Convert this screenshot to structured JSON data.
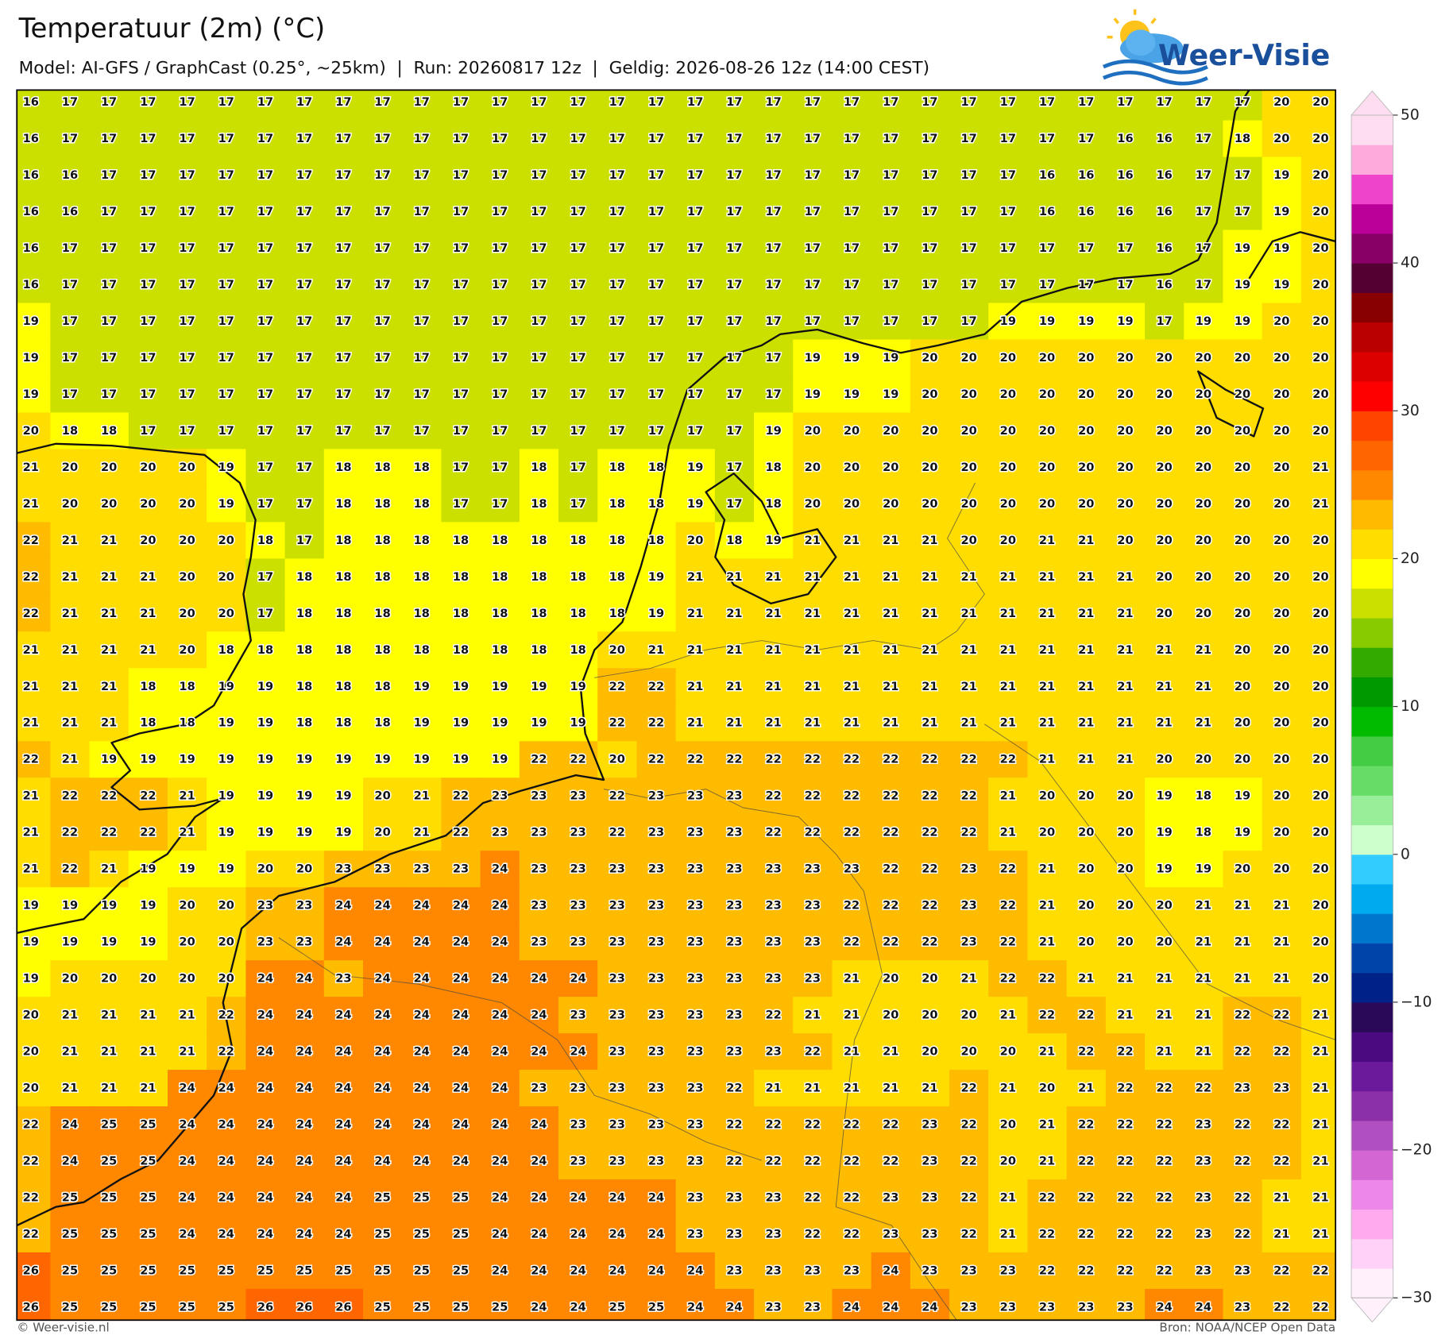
{
  "header": {
    "title": "Temperatuur (2m) (°C)",
    "subtitle": "Model: AI-GFS / GraphCast (0.25°, ~25km)  |  Run: 20260817 12z  |  Geldig: 2026-08-26 12z (14:00 CEST)",
    "logo": "Weer-Visie"
  },
  "map": {
    "grid": [
      [
        16,
        17,
        17,
        17,
        17,
        17,
        17,
        17,
        17,
        17,
        17,
        17,
        17,
        17,
        17,
        17,
        17,
        17,
        17,
        17,
        17,
        17,
        17,
        17,
        17,
        17,
        17,
        17,
        17,
        17,
        17,
        17,
        20,
        20
      ],
      [
        16,
        17,
        17,
        17,
        17,
        17,
        17,
        17,
        17,
        17,
        17,
        17,
        17,
        17,
        17,
        17,
        17,
        17,
        17,
        17,
        17,
        17,
        17,
        17,
        17,
        17,
        17,
        17,
        16,
        16,
        17,
        18,
        20,
        20
      ],
      [
        16,
        16,
        17,
        17,
        17,
        17,
        17,
        17,
        17,
        17,
        17,
        17,
        17,
        17,
        17,
        17,
        17,
        17,
        17,
        17,
        17,
        17,
        17,
        17,
        17,
        17,
        16,
        16,
        16,
        16,
        17,
        17,
        19,
        20
      ],
      [
        16,
        16,
        17,
        17,
        17,
        17,
        17,
        17,
        17,
        17,
        17,
        17,
        17,
        17,
        17,
        17,
        17,
        17,
        17,
        17,
        17,
        17,
        17,
        17,
        17,
        17,
        16,
        16,
        16,
        16,
        17,
        17,
        19,
        20
      ],
      [
        16,
        17,
        17,
        17,
        17,
        17,
        17,
        17,
        17,
        17,
        17,
        17,
        17,
        17,
        17,
        17,
        17,
        17,
        17,
        17,
        17,
        17,
        17,
        17,
        17,
        17,
        17,
        17,
        17,
        16,
        17,
        19,
        19,
        20
      ],
      [
        16,
        17,
        17,
        17,
        17,
        17,
        17,
        17,
        17,
        17,
        17,
        17,
        17,
        17,
        17,
        17,
        17,
        17,
        17,
        17,
        17,
        17,
        17,
        17,
        17,
        17,
        17,
        17,
        17,
        16,
        17,
        19,
        19,
        20
      ],
      [
        19,
        17,
        17,
        17,
        17,
        17,
        17,
        17,
        17,
        17,
        17,
        17,
        17,
        17,
        17,
        17,
        17,
        17,
        17,
        17,
        17,
        17,
        17,
        17,
        17,
        19,
        19,
        19,
        19,
        17,
        19,
        19,
        20,
        20
      ],
      [
        19,
        17,
        17,
        17,
        17,
        17,
        17,
        17,
        17,
        17,
        17,
        17,
        17,
        17,
        17,
        17,
        17,
        17,
        17,
        17,
        19,
        19,
        19,
        20,
        20,
        20,
        20,
        20,
        20,
        20,
        20,
        20,
        20,
        20
      ],
      [
        19,
        17,
        17,
        17,
        17,
        17,
        17,
        17,
        17,
        17,
        17,
        17,
        17,
        17,
        17,
        17,
        17,
        17,
        17,
        17,
        19,
        19,
        19,
        20,
        20,
        20,
        20,
        20,
        20,
        20,
        20,
        20,
        20,
        20
      ],
      [
        20,
        18,
        18,
        17,
        17,
        17,
        17,
        17,
        17,
        17,
        17,
        17,
        17,
        17,
        17,
        17,
        17,
        17,
        17,
        19,
        20,
        20,
        20,
        20,
        20,
        20,
        20,
        20,
        20,
        20,
        20,
        20,
        20,
        20
      ],
      [
        21,
        20,
        20,
        20,
        20,
        19,
        17,
        17,
        18,
        18,
        18,
        17,
        17,
        18,
        17,
        18,
        18,
        19,
        17,
        18,
        20,
        20,
        20,
        20,
        20,
        20,
        20,
        20,
        20,
        20,
        20,
        20,
        20,
        21
      ],
      [
        21,
        20,
        20,
        20,
        20,
        19,
        17,
        17,
        18,
        18,
        18,
        17,
        17,
        18,
        17,
        18,
        18,
        19,
        17,
        18,
        20,
        20,
        20,
        20,
        20,
        20,
        20,
        20,
        20,
        20,
        20,
        20,
        20,
        21
      ],
      [
        22,
        21,
        21,
        20,
        20,
        20,
        18,
        17,
        18,
        18,
        18,
        18,
        18,
        18,
        18,
        18,
        18,
        20,
        18,
        19,
        21,
        21,
        21,
        21,
        20,
        20,
        21,
        21,
        20,
        20,
        20,
        20,
        20,
        20
      ],
      [
        22,
        21,
        21,
        21,
        20,
        20,
        17,
        18,
        18,
        18,
        18,
        18,
        18,
        18,
        18,
        18,
        19,
        21,
        21,
        21,
        21,
        21,
        21,
        21,
        21,
        21,
        21,
        21,
        21,
        20,
        20,
        20,
        20,
        20
      ],
      [
        22,
        21,
        21,
        21,
        20,
        20,
        17,
        18,
        18,
        18,
        18,
        18,
        18,
        18,
        18,
        18,
        19,
        21,
        21,
        21,
        21,
        21,
        21,
        21,
        21,
        21,
        21,
        21,
        21,
        20,
        20,
        20,
        20,
        20
      ],
      [
        21,
        21,
        21,
        21,
        20,
        18,
        18,
        18,
        18,
        18,
        18,
        18,
        18,
        18,
        18,
        20,
        21,
        21,
        21,
        21,
        21,
        21,
        21,
        21,
        21,
        21,
        21,
        21,
        21,
        21,
        21,
        20,
        20,
        20
      ],
      [
        21,
        21,
        21,
        18,
        18,
        19,
        19,
        18,
        18,
        18,
        19,
        19,
        19,
        19,
        19,
        22,
        22,
        21,
        21,
        21,
        21,
        21,
        21,
        21,
        21,
        21,
        21,
        21,
        21,
        21,
        21,
        20,
        20,
        20
      ],
      [
        21,
        21,
        21,
        18,
        18,
        19,
        19,
        18,
        18,
        18,
        19,
        19,
        19,
        19,
        19,
        22,
        22,
        21,
        21,
        21,
        21,
        21,
        21,
        21,
        21,
        21,
        21,
        21,
        21,
        21,
        21,
        20,
        20,
        20
      ],
      [
        22,
        21,
        19,
        19,
        19,
        19,
        19,
        19,
        19,
        19,
        19,
        19,
        19,
        22,
        22,
        20,
        22,
        22,
        22,
        22,
        22,
        22,
        22,
        22,
        22,
        22,
        21,
        21,
        21,
        20,
        20,
        20,
        20,
        20
      ],
      [
        21,
        22,
        22,
        22,
        21,
        19,
        19,
        19,
        19,
        20,
        21,
        22,
        23,
        23,
        23,
        22,
        23,
        23,
        23,
        22,
        22,
        22,
        22,
        22,
        22,
        21,
        20,
        20,
        20,
        19,
        18,
        19,
        20,
        20
      ],
      [
        21,
        22,
        22,
        22,
        21,
        19,
        19,
        19,
        19,
        20,
        21,
        22,
        23,
        23,
        23,
        22,
        23,
        23,
        23,
        22,
        22,
        22,
        22,
        22,
        22,
        21,
        20,
        20,
        20,
        19,
        18,
        19,
        20,
        20
      ],
      [
        21,
        22,
        21,
        19,
        19,
        19,
        20,
        20,
        23,
        23,
        23,
        23,
        24,
        23,
        23,
        23,
        23,
        23,
        23,
        23,
        23,
        23,
        22,
        22,
        23,
        22,
        21,
        20,
        20,
        19,
        19,
        20,
        20,
        20
      ],
      [
        19,
        19,
        19,
        19,
        20,
        20,
        23,
        23,
        24,
        24,
        24,
        24,
        24,
        23,
        23,
        23,
        23,
        23,
        23,
        23,
        23,
        22,
        22,
        22,
        23,
        22,
        21,
        20,
        20,
        20,
        21,
        21,
        21,
        20
      ],
      [
        19,
        19,
        19,
        19,
        20,
        20,
        23,
        23,
        24,
        24,
        24,
        24,
        24,
        23,
        23,
        23,
        23,
        23,
        23,
        23,
        23,
        22,
        22,
        22,
        23,
        22,
        21,
        20,
        20,
        20,
        21,
        21,
        21,
        20
      ],
      [
        19,
        20,
        20,
        20,
        20,
        20,
        24,
        24,
        23,
        24,
        24,
        24,
        24,
        24,
        24,
        23,
        23,
        23,
        23,
        23,
        23,
        21,
        20,
        20,
        21,
        22,
        22,
        21,
        21,
        21,
        21,
        21,
        21,
        20
      ],
      [
        20,
        21,
        21,
        21,
        21,
        22,
        24,
        24,
        24,
        24,
        24,
        24,
        24,
        24,
        23,
        23,
        23,
        23,
        23,
        22,
        21,
        21,
        20,
        20,
        20,
        21,
        22,
        22,
        21,
        21,
        21,
        22,
        22,
        21
      ],
      [
        20,
        21,
        21,
        21,
        21,
        22,
        24,
        24,
        24,
        24,
        24,
        24,
        24,
        24,
        24,
        23,
        23,
        23,
        23,
        23,
        22,
        21,
        21,
        20,
        20,
        20,
        21,
        22,
        22,
        21,
        21,
        22,
        22,
        21
      ],
      [
        20,
        21,
        21,
        21,
        24,
        24,
        24,
        24,
        24,
        24,
        24,
        24,
        24,
        23,
        23,
        23,
        23,
        23,
        22,
        21,
        21,
        21,
        21,
        21,
        22,
        21,
        20,
        21,
        22,
        22,
        22,
        23,
        23,
        21
      ],
      [
        22,
        24,
        25,
        25,
        24,
        24,
        24,
        24,
        24,
        24,
        24,
        24,
        24,
        24,
        23,
        23,
        23,
        23,
        22,
        22,
        22,
        22,
        22,
        23,
        22,
        20,
        21,
        22,
        22,
        22,
        23,
        22,
        22,
        21
      ],
      [
        22,
        24,
        25,
        25,
        24,
        24,
        24,
        24,
        24,
        24,
        24,
        24,
        24,
        24,
        23,
        23,
        23,
        23,
        22,
        22,
        22,
        22,
        22,
        23,
        22,
        20,
        21,
        22,
        22,
        22,
        23,
        22,
        22,
        21
      ],
      [
        22,
        25,
        25,
        25,
        24,
        24,
        24,
        24,
        24,
        25,
        25,
        25,
        24,
        24,
        24,
        24,
        24,
        23,
        23,
        23,
        22,
        22,
        23,
        23,
        22,
        21,
        22,
        22,
        22,
        22,
        23,
        22,
        21,
        21
      ],
      [
        22,
        25,
        25,
        25,
        24,
        24,
        24,
        24,
        24,
        25,
        25,
        25,
        24,
        24,
        24,
        24,
        24,
        23,
        23,
        23,
        22,
        22,
        23,
        23,
        22,
        21,
        22,
        22,
        22,
        22,
        23,
        22,
        21,
        21
      ],
      [
        26,
        25,
        25,
        25,
        25,
        25,
        25,
        25,
        25,
        25,
        25,
        25,
        24,
        24,
        24,
        24,
        24,
        24,
        23,
        23,
        23,
        23,
        24,
        23,
        23,
        23,
        22,
        22,
        22,
        22,
        23,
        23,
        22,
        22
      ],
      [
        26,
        25,
        25,
        25,
        25,
        25,
        26,
        26,
        26,
        25,
        25,
        25,
        25,
        24,
        24,
        25,
        25,
        24,
        24,
        23,
        23,
        24,
        24,
        24,
        23,
        23,
        23,
        23,
        23,
        24,
        24,
        23,
        22,
        22
      ]
    ]
  },
  "colorbar": {
    "range": [
      -30,
      50
    ],
    "colors": [
      "#fff0fb",
      "#ffd0f8",
      "#ffaaee",
      "#ee88e8",
      "#d466d4",
      "#b050c0",
      "#8c30aa",
      "#6a1a9a",
      "#4a0a80",
      "#2a0a58",
      "#002288",
      "#0044aa",
      "#0077cc",
      "#00aaee",
      "#33ccff",
      "#ccffcc",
      "#99ee99",
      "#66dd66",
      "#44cc44",
      "#00bb00",
      "#009900",
      "#33aa00",
      "#88cc00",
      "#cce000",
      "#ffff00",
      "#ffdd00",
      "#ffbb00",
      "#ff8800",
      "#ff6600",
      "#ff4400",
      "#ff0000",
      "#dd0000",
      "#bb0000",
      "#880000",
      "#550033",
      "#880066",
      "#bb0099",
      "#ee44cc",
      "#ffaadd",
      "#ffddf0"
    ],
    "ticks": [
      50,
      40,
      30,
      20,
      10,
      0,
      {
        "value": -10,
        "label": "−10"
      },
      {
        "value": -20,
        "label": "−20"
      },
      {
        "value": -30,
        "label": "−30"
      }
    ]
  },
  "footer": {
    "left": "© Weer-visie.nl",
    "right": "Bron: NOAA/NCEP Open Data"
  }
}
